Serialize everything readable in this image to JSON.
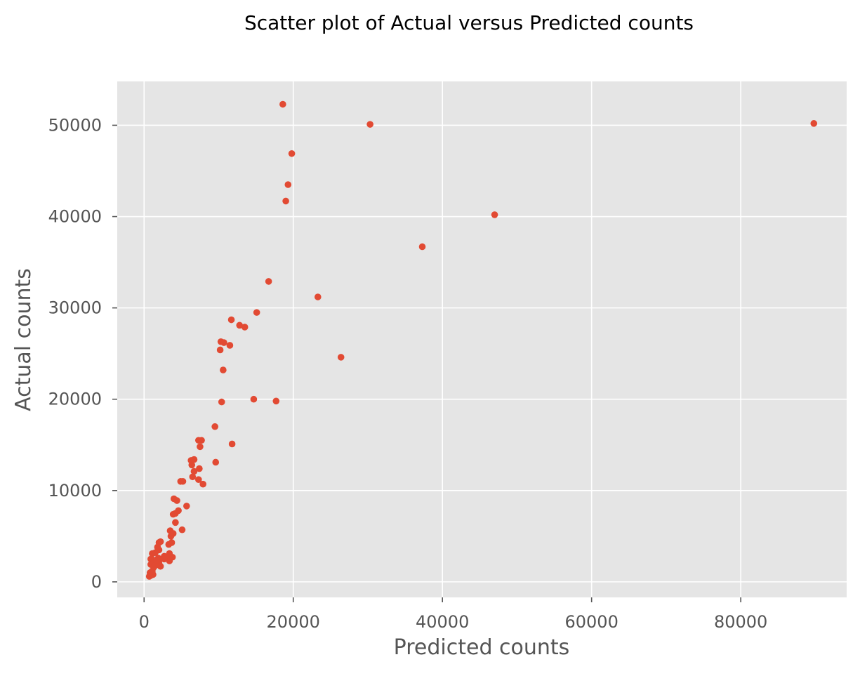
{
  "chart_data": {
    "type": "scatter",
    "title": "Scatter plot of Actual versus Predicted counts",
    "xlabel": "Predicted counts",
    "ylabel": "Actual counts",
    "xlim": [
      -3600,
      94200
    ],
    "ylim": [
      -1700,
      54800
    ],
    "xticks": [
      0,
      20000,
      40000,
      60000,
      80000
    ],
    "yticks": [
      0,
      10000,
      20000,
      30000,
      40000,
      50000
    ],
    "grid": true,
    "background_color": "#E5E5E5",
    "grid_color": "#FFFFFF",
    "marker_color": "#E24A33",
    "tick_label_color": "#555555",
    "title_color": "#000000",
    "series": [
      {
        "points": [
          [
            18600,
            52300
          ],
          [
            30300,
            50100
          ],
          [
            89800,
            50200
          ],
          [
            19800,
            46900
          ],
          [
            19300,
            43500
          ],
          [
            19000,
            41700
          ],
          [
            47000,
            40200
          ],
          [
            37300,
            36700
          ],
          [
            16700,
            32900
          ],
          [
            23300,
            31200
          ],
          [
            15100,
            29500
          ],
          [
            11700,
            28700
          ],
          [
            12800,
            28100
          ],
          [
            13500,
            27900
          ],
          [
            10300,
            26300
          ],
          [
            10700,
            26200
          ],
          [
            11500,
            25900
          ],
          [
            10200,
            25400
          ],
          [
            26400,
            24600
          ],
          [
            10600,
            23200
          ],
          [
            14700,
            20000
          ],
          [
            17700,
            19800
          ],
          [
            10400,
            19700
          ],
          [
            9500,
            17000
          ],
          [
            7300,
            15500
          ],
          [
            7700,
            15500
          ],
          [
            11800,
            15100
          ],
          [
            7500,
            14800
          ],
          [
            6300,
            13300
          ],
          [
            6700,
            13400
          ],
          [
            9600,
            13100
          ],
          [
            6400,
            12800
          ],
          [
            7400,
            12400
          ],
          [
            6700,
            12100
          ],
          [
            6500,
            11500
          ],
          [
            7300,
            11200
          ],
          [
            4900,
            11000
          ],
          [
            5200,
            11000
          ],
          [
            7900,
            10700
          ],
          [
            4000,
            9100
          ],
          [
            4400,
            8900
          ],
          [
            5700,
            8300
          ],
          [
            4600,
            7800
          ],
          [
            4200,
            7500
          ],
          [
            3900,
            7400
          ],
          [
            4200,
            6500
          ],
          [
            5100,
            5700
          ],
          [
            3500,
            5600
          ],
          [
            3900,
            5300
          ],
          [
            3600,
            5000
          ],
          [
            3300,
            4100
          ],
          [
            3700,
            4300
          ],
          [
            2000,
            4300
          ],
          [
            2200,
            4400
          ],
          [
            1800,
            3800
          ],
          [
            2000,
            3500
          ],
          [
            1500,
            3200
          ],
          [
            1100,
            3100
          ],
          [
            3400,
            3100
          ],
          [
            2700,
            2800
          ],
          [
            3800,
            2700
          ],
          [
            3000,
            2600
          ],
          [
            2200,
            2500
          ],
          [
            1900,
            2600
          ],
          [
            900,
            2500
          ],
          [
            1200,
            2400
          ],
          [
            3400,
            2300
          ],
          [
            1600,
            2200
          ],
          [
            2000,
            2000
          ],
          [
            900,
            1900
          ],
          [
            2200,
            1700
          ],
          [
            1300,
            1600
          ],
          [
            1100,
            1200
          ],
          [
            800,
            1000
          ],
          [
            1000,
            900
          ],
          [
            900,
            700
          ],
          [
            700,
            600
          ],
          [
            1200,
            800
          ],
          [
            1000,
            1100
          ],
          [
            1500,
            1800
          ],
          [
            1700,
            2400
          ],
          [
            2700,
            2500
          ]
        ]
      }
    ]
  }
}
